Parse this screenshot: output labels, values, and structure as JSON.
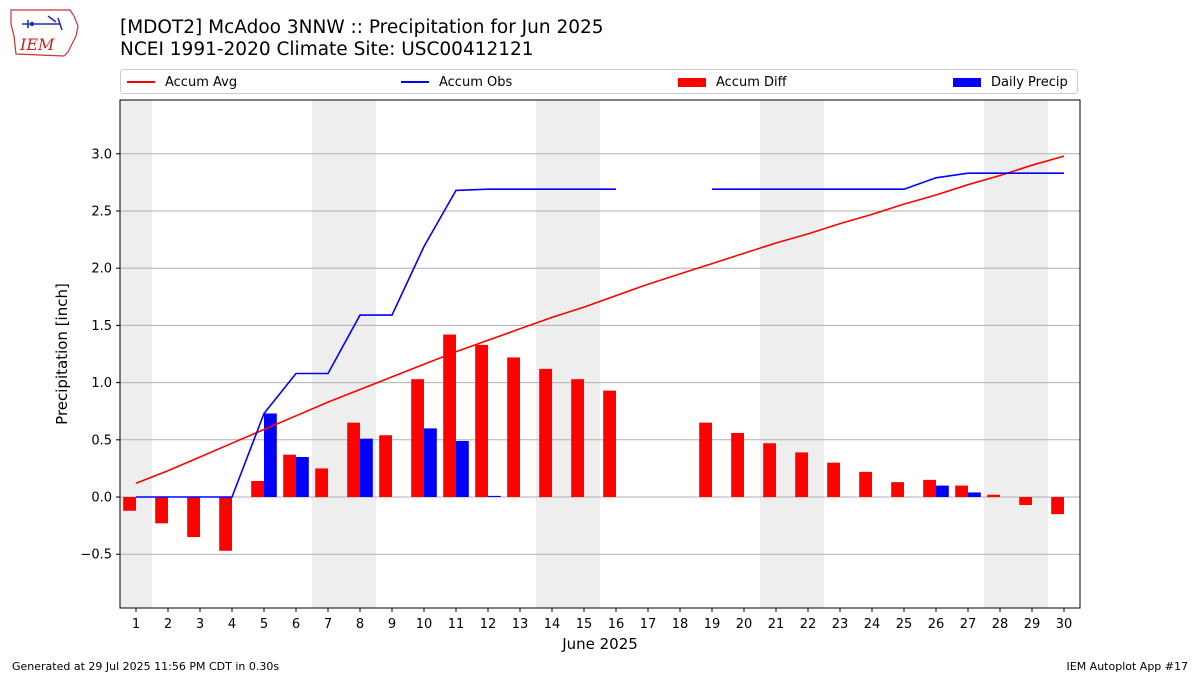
{
  "header": {
    "logo_text": "IEM",
    "title_line1": "[MDOT2] McAdoo 3NNW :: Precipitation for Jun 2025",
    "title_line2": "NCEI 1991-2020 Climate Site: USC00412121"
  },
  "footer": {
    "generated": "Generated at 29 Jul 2025 11:56 PM CDT in 0.30s",
    "app": "IEM Autoplot App #17"
  },
  "colors": {
    "avg": "#ff0000",
    "obs": "#0000ff",
    "diff": "#ff0000",
    "daily": "#0000ff",
    "weekend_shade": "#eeeeee",
    "grid": "#b0b0b0"
  },
  "chart_data": {
    "type": "bar",
    "xlabel": "June 2025",
    "ylabel": "Precipitation [inch]",
    "ylim": [
      -0.97,
      3.47
    ],
    "xlim": [
      0.5,
      30.5
    ],
    "yticks": [
      -0.5,
      0.0,
      0.5,
      1.0,
      1.5,
      2.0,
      2.5,
      3.0
    ],
    "ytick_labels": [
      "−0.5",
      "0.0",
      "0.5",
      "1.0",
      "1.5",
      "2.0",
      "2.5",
      "3.0"
    ],
    "days": [
      1,
      2,
      3,
      4,
      5,
      6,
      7,
      8,
      9,
      10,
      11,
      12,
      13,
      14,
      15,
      16,
      17,
      18,
      19,
      20,
      21,
      22,
      23,
      24,
      25,
      26,
      27,
      28,
      29,
      30
    ],
    "grid": "horizontal",
    "legend_placement": "top",
    "weekends": [
      [
        1,
        1
      ],
      [
        7,
        8
      ],
      [
        14,
        15
      ],
      [
        21,
        22
      ],
      [
        28,
        29
      ]
    ],
    "series": [
      {
        "name": "Accum Avg",
        "kind": "line",
        "values": [
          0.12,
          0.23,
          0.35,
          0.47,
          0.59,
          0.71,
          0.83,
          0.94,
          1.05,
          1.16,
          1.27,
          1.37,
          1.47,
          1.57,
          1.66,
          1.76,
          1.86,
          1.95,
          2.04,
          2.13,
          2.22,
          2.3,
          2.39,
          2.47,
          2.56,
          2.64,
          2.73,
          2.81,
          2.9,
          2.98
        ]
      },
      {
        "name": "Accum Obs",
        "kind": "line",
        "values": [
          0.0,
          0.0,
          0.0,
          0.0,
          0.73,
          1.08,
          1.08,
          1.59,
          1.59,
          2.19,
          2.68,
          2.69,
          2.69,
          2.69,
          2.69,
          2.69,
          null,
          null,
          2.69,
          2.69,
          2.69,
          2.69,
          2.69,
          2.69,
          2.69,
          2.79,
          2.83,
          2.83,
          2.83,
          2.83
        ]
      },
      {
        "name": "Accum Diff",
        "kind": "bar",
        "values": [
          -0.12,
          -0.23,
          -0.35,
          -0.47,
          0.14,
          0.37,
          0.25,
          0.65,
          0.54,
          1.03,
          1.42,
          1.33,
          1.22,
          1.12,
          1.03,
          0.93,
          null,
          null,
          0.65,
          0.56,
          0.47,
          0.39,
          0.3,
          0.22,
          0.13,
          0.15,
          0.1,
          0.02,
          -0.07,
          -0.15
        ]
      },
      {
        "name": "Daily Precip",
        "kind": "bar",
        "values": [
          0,
          0,
          0,
          0,
          0.73,
          0.35,
          0,
          0.51,
          0,
          0.6,
          0.49,
          0.01,
          0,
          0,
          0,
          0,
          null,
          null,
          0,
          0,
          0,
          0,
          0,
          0,
          0,
          0.1,
          0.04,
          0,
          0,
          0
        ]
      }
    ]
  }
}
